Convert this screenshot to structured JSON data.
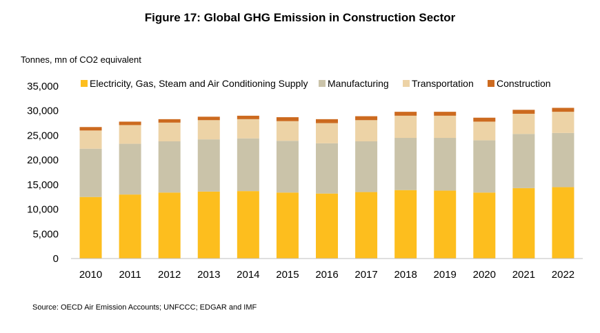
{
  "chart_data": {
    "type": "bar",
    "stacked": true,
    "title": "Figure 17: Global GHG Emission in Construction Sector",
    "ylabel": "Tonnes, mn of CO2 equivalent",
    "xlabel": "",
    "ylim": [
      0,
      35000
    ],
    "yticks": [
      0,
      5000,
      10000,
      15000,
      20000,
      25000,
      30000,
      35000
    ],
    "ytick_labels": [
      "0",
      "5,000",
      "10,000",
      "15,000",
      "20,000",
      "25,000",
      "30,000",
      "35,000"
    ],
    "legend_position": "top",
    "grid": false,
    "categories": [
      "2010",
      "2011",
      "2012",
      "2013",
      "2014",
      "2015",
      "2016",
      "2017",
      "2018",
      "2019",
      "2020",
      "2021",
      "2022"
    ],
    "series": [
      {
        "name": "Electricity, Gas, Steam and Air Conditioning Supply",
        "color": "#FDBE1E",
        "values": [
          12500,
          13000,
          13400,
          13600,
          13700,
          13400,
          13200,
          13500,
          13900,
          13800,
          13400,
          14300,
          14500
        ]
      },
      {
        "name": "Manufacturing",
        "color": "#CAC3A9",
        "values": [
          9800,
          10300,
          10400,
          10600,
          10700,
          10500,
          10200,
          10300,
          10600,
          10700,
          10600,
          11000,
          11000
        ]
      },
      {
        "name": "Transportation",
        "color": "#EDD3A6",
        "values": [
          3700,
          3800,
          3800,
          3900,
          3900,
          4000,
          4100,
          4300,
          4500,
          4500,
          3800,
          4100,
          4300
        ]
      },
      {
        "name": "Construction",
        "color": "#CC6A1F",
        "values": [
          700,
          700,
          700,
          700,
          700,
          800,
          800,
          800,
          800,
          800,
          800,
          800,
          800
        ]
      }
    ],
    "source": "Source: OECD Air Emission Accounts; UNFCCC; EDGAR and IMF"
  }
}
